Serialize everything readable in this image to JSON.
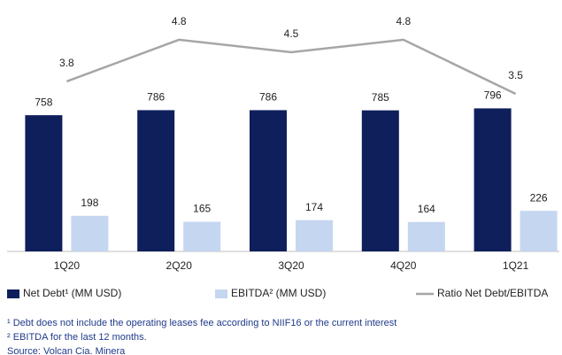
{
  "chart_data": {
    "type": "bar",
    "categories": [
      "1Q20",
      "2Q20",
      "3Q20",
      "4Q20",
      "1Q21"
    ],
    "series": [
      {
        "name": "Net Debt¹ (MM USD)",
        "color": "#0f1f5c",
        "values": [
          758,
          786,
          786,
          785,
          796
        ]
      },
      {
        "name": "EBITDA² (MM USD)",
        "color": "#c5d6f0",
        "values": [
          198,
          165,
          174,
          164,
          226
        ]
      },
      {
        "name": "Ratio Net Debt/EBITDA",
        "color": "#a6a6a6",
        "type": "line",
        "axis": "y2",
        "values": [
          3.8,
          4.8,
          4.5,
          4.8,
          3.5
        ]
      }
    ],
    "ylim": [
      0,
      1000
    ],
    "y2lim": [
      2,
      5
    ],
    "legend": "bottom",
    "footnotes": [
      "¹ Debt does not include the operating leases fee according to NIIF16 or the current interest",
      "² EBITDA for the last 12 months.",
      "Source: Volcan Cia. Minera"
    ]
  }
}
